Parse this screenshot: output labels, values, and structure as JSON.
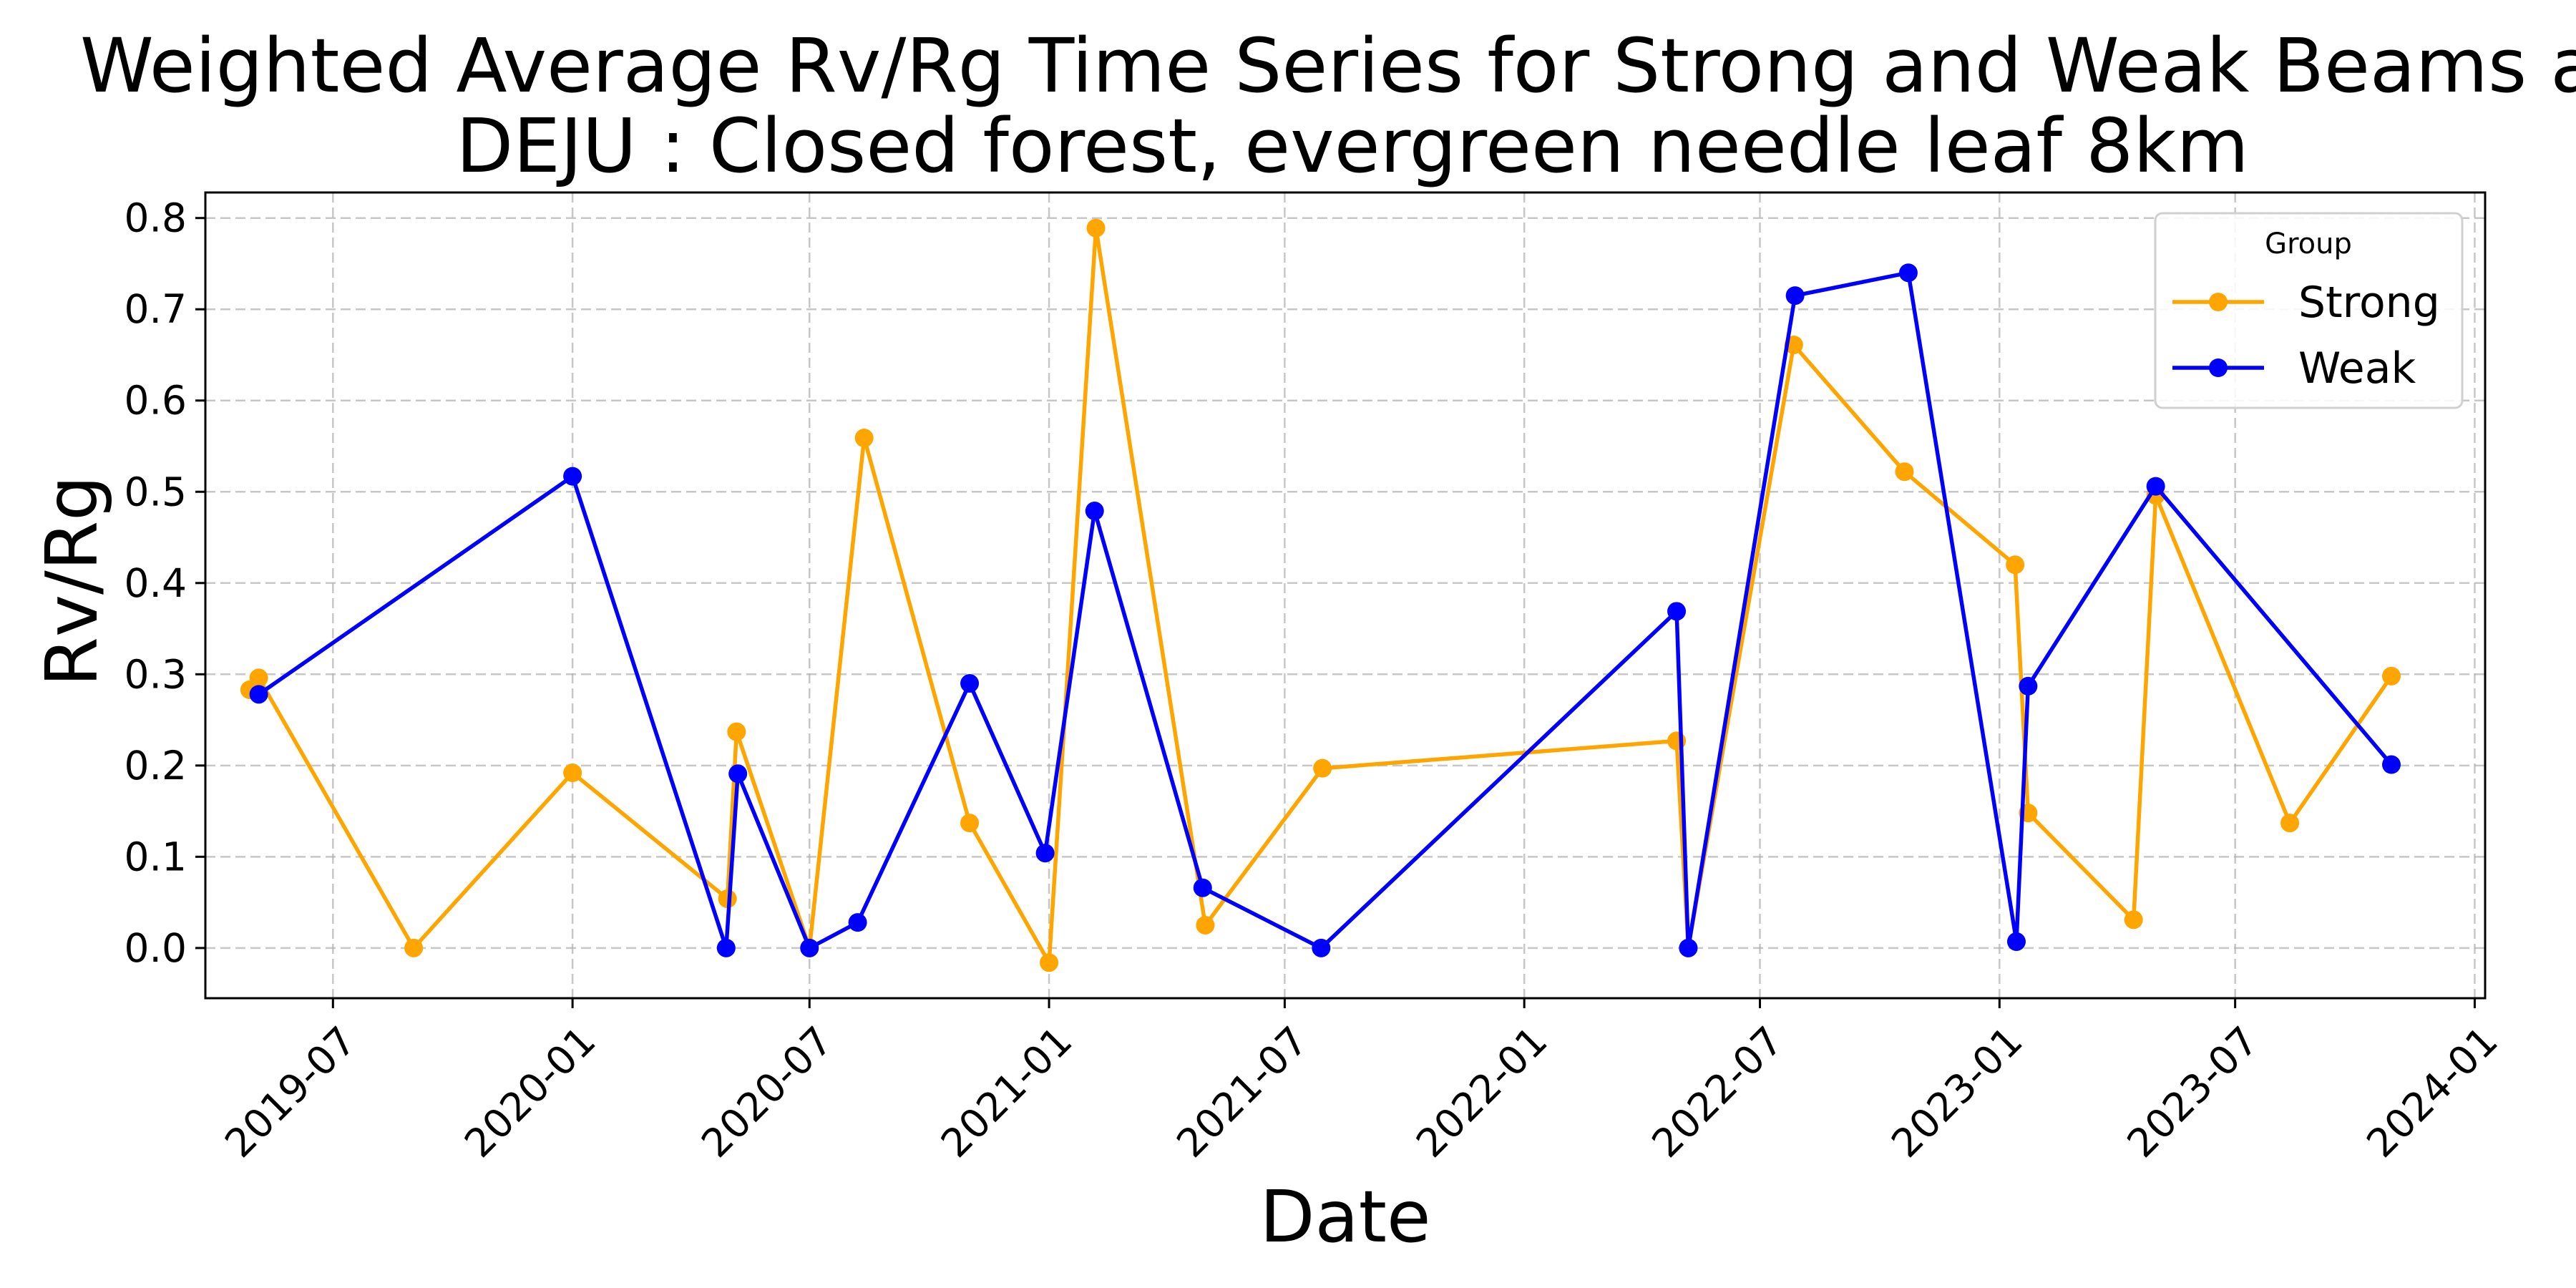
{
  "chart_data": {
    "type": "line",
    "title_lines": [
      "Weighted Average Rv/Rg Time Series for Strong and Weak Beams a",
      "DEJU : Closed forest, evergreen needle leaf 8km"
    ],
    "xlabel": "Date",
    "ylabel": "Rv/Rg",
    "xlim": [
      "2019-03-25",
      "2024-01-09"
    ],
    "ylim": [
      -0.055,
      0.828
    ],
    "x_ticks": [
      "2019-07-01",
      "2020-01-01",
      "2020-07-01",
      "2021-01-01",
      "2021-07-01",
      "2022-01-01",
      "2022-07-01",
      "2023-01-01",
      "2023-07-01",
      "2024-01-01"
    ],
    "x_tick_labels": [
      "2019-07",
      "2020-01",
      "2020-07",
      "2021-01",
      "2021-07",
      "2022-01",
      "2022-07",
      "2023-01",
      "2023-07",
      "2024-01"
    ],
    "y_ticks": [
      0.0,
      0.1,
      0.2,
      0.3,
      0.4,
      0.5,
      0.6,
      0.7,
      0.8
    ],
    "y_tick_labels": [
      "0.0",
      "0.1",
      "0.2",
      "0.3",
      "0.4",
      "0.5",
      "0.6",
      "0.7",
      "0.8"
    ],
    "grid": true,
    "legend": {
      "title": "Group",
      "position": "top-right"
    },
    "series": [
      {
        "name": "Strong",
        "color": "#FFA500",
        "points": [
          {
            "x": "2019-04-28",
            "y": 0.283
          },
          {
            "x": "2019-05-05",
            "y": 0.296
          },
          {
            "x": "2019-09-01",
            "y": 0.0
          },
          {
            "x": "2020-01-01",
            "y": 0.192
          },
          {
            "x": "2020-04-29",
            "y": 0.054
          },
          {
            "x": "2020-05-06",
            "y": 0.237
          },
          {
            "x": "2020-07-01",
            "y": 0.0
          },
          {
            "x": "2020-08-12",
            "y": 0.559
          },
          {
            "x": "2020-11-01",
            "y": 0.137
          },
          {
            "x": "2021-01-01",
            "y": -0.016
          },
          {
            "x": "2021-02-06",
            "y": 0.789
          },
          {
            "x": "2021-05-01",
            "y": 0.025
          },
          {
            "x": "2021-07-30",
            "y": 0.197
          },
          {
            "x": "2022-04-28",
            "y": 0.227
          },
          {
            "x": "2022-05-07",
            "y": 0.0
          },
          {
            "x": "2022-07-27",
            "y": 0.661
          },
          {
            "x": "2022-10-20",
            "y": 0.522
          },
          {
            "x": "2023-01-13",
            "y": 0.42
          },
          {
            "x": "2023-01-23",
            "y": 0.148
          },
          {
            "x": "2023-04-14",
            "y": 0.031
          },
          {
            "x": "2023-05-01",
            "y": 0.496
          },
          {
            "x": "2023-08-12",
            "y": 0.137
          },
          {
            "x": "2023-10-29",
            "y": 0.298
          }
        ]
      },
      {
        "name": "Weak",
        "color": "#0000FF",
        "points": [
          {
            "x": "2019-05-05",
            "y": 0.278
          },
          {
            "x": "2020-01-01",
            "y": 0.517
          },
          {
            "x": "2020-04-28",
            "y": 0.0
          },
          {
            "x": "2020-05-07",
            "y": 0.191
          },
          {
            "x": "2020-07-01",
            "y": 0.0
          },
          {
            "x": "2020-08-07",
            "y": 0.028
          },
          {
            "x": "2020-11-01",
            "y": 0.29
          },
          {
            "x": "2020-12-29",
            "y": 0.104
          },
          {
            "x": "2021-02-05",
            "y": 0.479
          },
          {
            "x": "2021-04-29",
            "y": 0.066
          },
          {
            "x": "2021-07-29",
            "y": 0.0
          },
          {
            "x": "2022-04-28",
            "y": 0.369
          },
          {
            "x": "2022-05-07",
            "y": 0.0
          },
          {
            "x": "2022-07-28",
            "y": 0.715
          },
          {
            "x": "2022-10-23",
            "y": 0.74
          },
          {
            "x": "2023-01-14",
            "y": 0.007
          },
          {
            "x": "2023-01-23",
            "y": 0.287
          },
          {
            "x": "2023-05-01",
            "y": 0.506
          },
          {
            "x": "2023-10-29",
            "y": 0.201
          }
        ]
      }
    ]
  }
}
